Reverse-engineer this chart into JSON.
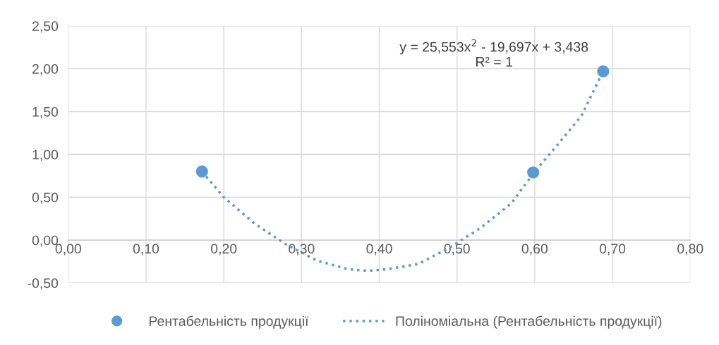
{
  "chart_data": {
    "type": "scatter",
    "series": [
      {
        "name": "Рентабельність продукції",
        "color": "#5b9bd5",
        "marker": "circle",
        "x": [
          0.172,
          0.598,
          0.688
        ],
        "values": [
          0.8,
          0.79,
          1.97
        ]
      },
      {
        "name": "Поліноміальна (Рентабельність продукції)",
        "type": "line",
        "color": "#5b9bd5",
        "line_style": "dotted",
        "marker": "none",
        "x": [
          0.172,
          0.2,
          0.24,
          0.28,
          0.32,
          0.36,
          0.385,
          0.41,
          0.45,
          0.49,
          0.53,
          0.57,
          0.6,
          0.63,
          0.66,
          0.688
        ],
        "values": [
          0.8,
          0.5,
          0.19,
          -0.05,
          -0.24,
          -0.34,
          -0.36,
          -0.34,
          -0.28,
          -0.09,
          0.14,
          0.43,
          0.8,
          1.12,
          1.45,
          1.97
        ]
      }
    ],
    "xlim": [
      0,
      0.8
    ],
    "xticks": [
      {
        "value": 0,
        "label": "0,00"
      },
      {
        "value": 0.1,
        "label": "0,10"
      },
      {
        "value": 0.2,
        "label": "0,20"
      },
      {
        "value": 0.3,
        "label": "0,30"
      },
      {
        "value": 0.4,
        "label": "0,40"
      },
      {
        "value": 0.5,
        "label": "0,50"
      },
      {
        "value": 0.6,
        "label": "0,60"
      },
      {
        "value": 0.7,
        "label": "0,70"
      },
      {
        "value": 0.8,
        "label": "0,80"
      }
    ],
    "ylim": [
      -0.5,
      2.5
    ],
    "yticks": [
      {
        "value": -0.5,
        "label": "-0,50"
      },
      {
        "value": 0,
        "label": "0,00"
      },
      {
        "value": 0.5,
        "label": "0,50"
      },
      {
        "value": 1,
        "label": "1,00"
      },
      {
        "value": 1.5,
        "label": "1,50"
      },
      {
        "value": 2,
        "label": "2,00"
      },
      {
        "value": 2.5,
        "label": "2,50"
      }
    ],
    "annotations": [
      {
        "text": "y = 25,553x$^{2}$ - 19,697x + 3,438\nR² = 1",
        "x": 0.688,
        "y": 1.97
      }
    ],
    "grid": true,
    "legend": "bottom"
  }
}
